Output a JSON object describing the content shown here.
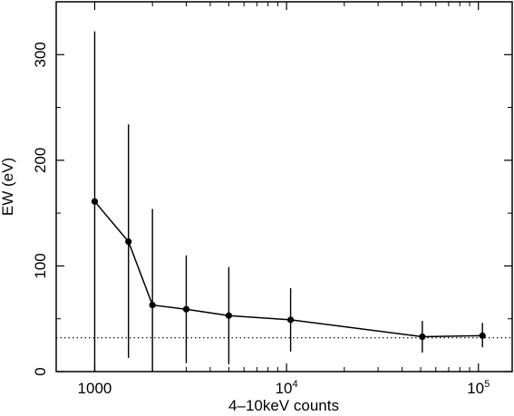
{
  "chart_data": {
    "type": "scatter",
    "title": "",
    "xlabel": "4–10keV counts",
    "ylabel": "EW (eV)",
    "x_scale": "log",
    "xlim": [
      630,
      150000
    ],
    "ylim": [
      0,
      350
    ],
    "grid": false,
    "x_major_ticks": [
      {
        "value": 1000,
        "label": "1000",
        "exp": ""
      },
      {
        "value": 10000,
        "label": "10",
        "exp": "4"
      },
      {
        "value": 100000,
        "label": "10",
        "exp": "5"
      }
    ],
    "x_minor_ticks": [
      2000,
      3000,
      4000,
      5000,
      6000,
      7000,
      8000,
      9000,
      20000,
      30000,
      40000,
      50000,
      60000,
      70000,
      80000,
      90000
    ],
    "y_ticks": [
      {
        "value": 0,
        "label": "0"
      },
      {
        "value": 100,
        "label": "100"
      },
      {
        "value": 200,
        "label": "200"
      },
      {
        "value": 300,
        "label": "300"
      }
    ],
    "y_minor_ticks": [
      50,
      150,
      250
    ],
    "reference_line": {
      "y": 32,
      "style": "dotted"
    },
    "series": [
      {
        "points": [
          {
            "x": 1000,
            "y": 161,
            "err_low": 0,
            "err_high": 322
          },
          {
            "x": 1500,
            "y": 123,
            "err_low": 13,
            "err_high": 234
          },
          {
            "x": 2000,
            "y": 63,
            "err_low": 0,
            "err_high": 154
          },
          {
            "x": 3000,
            "y": 59,
            "err_low": 8,
            "err_high": 110
          },
          {
            "x": 5000,
            "y": 53,
            "err_low": 7,
            "err_high": 99
          },
          {
            "x": 10500,
            "y": 49,
            "err_low": 19,
            "err_high": 79
          },
          {
            "x": 51000,
            "y": 33,
            "err_low": 18,
            "err_high": 48
          },
          {
            "x": 105000,
            "y": 34,
            "err_low": 23,
            "err_high": 46
          }
        ]
      }
    ]
  }
}
